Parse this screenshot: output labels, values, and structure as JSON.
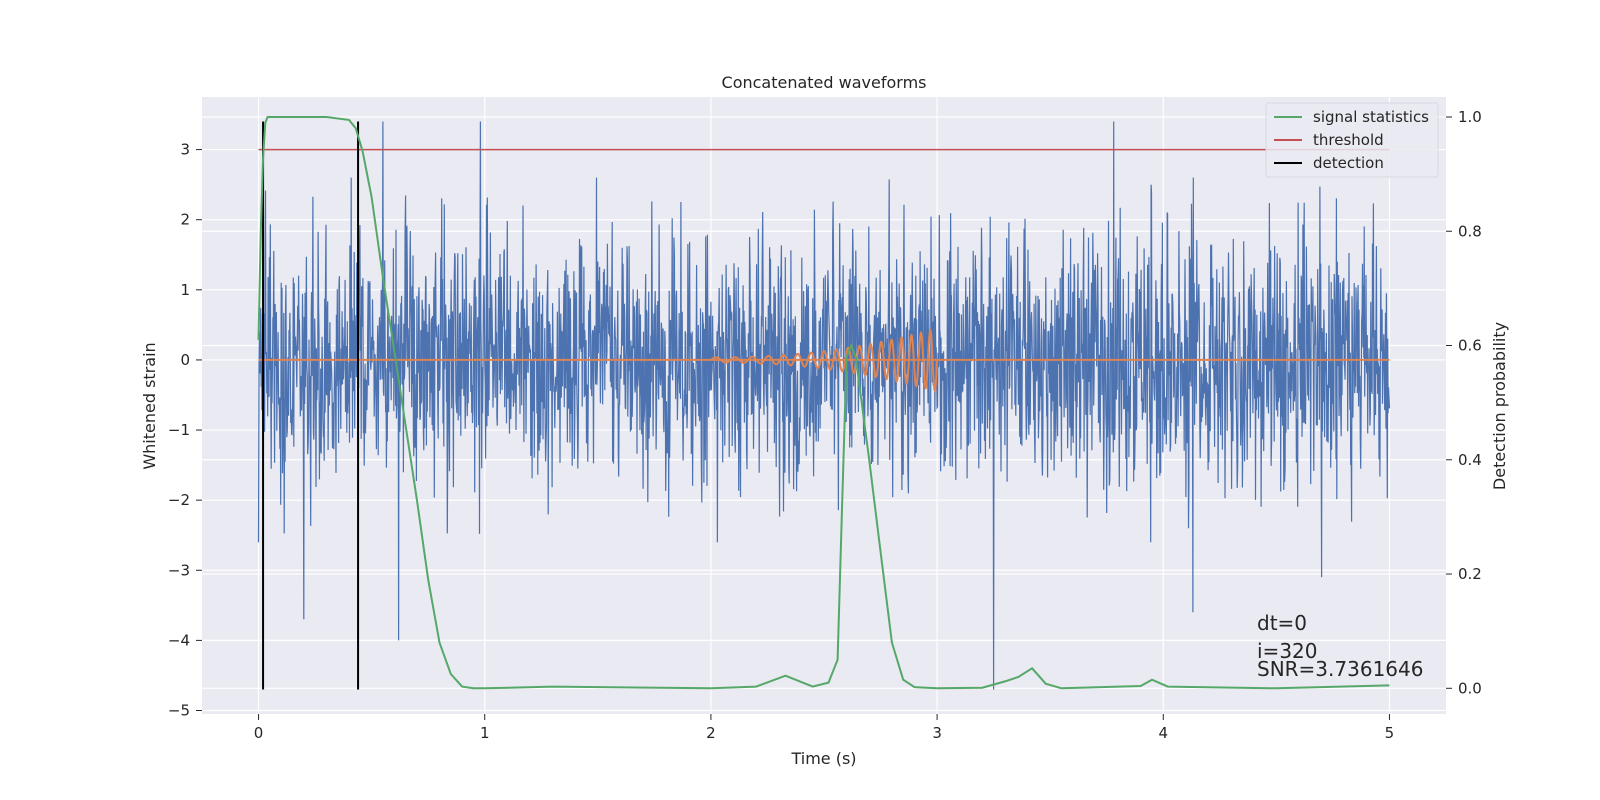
{
  "chart_data": {
    "type": "line",
    "title": "Concatenated waveforms",
    "xlabel": "Time (s)",
    "ylabel": "Whitened strain",
    "y2label": "Detection probability",
    "xlim": [
      -0.25,
      5.25
    ],
    "ylim": [
      -5.05,
      3.75
    ],
    "y2lim": [
      -0.045,
      1.035
    ],
    "xticks": [
      0,
      1,
      2,
      3,
      4,
      5
    ],
    "yticks": [
      3,
      2,
      1,
      0,
      -1,
      -2,
      -3,
      -4,
      -5
    ],
    "y2ticks": [
      1.0,
      0.8,
      0.6,
      0.4,
      0.2,
      0.0
    ],
    "xtick_labels": [
      "0",
      "1",
      "2",
      "3",
      "4",
      "5"
    ],
    "ytick_labels": [
      "3",
      "2",
      "1",
      "0",
      "−1",
      "−2",
      "−3",
      "−4",
      "−5"
    ],
    "y2tick_labels": [
      "1.0",
      "0.8",
      "0.6",
      "0.4",
      "0.2",
      "0.0"
    ],
    "grid": true,
    "legend_position": "top-right",
    "colors": {
      "background": "#eaeaf2",
      "grid": "#ffffff",
      "strain": "#4c72b0",
      "template": "#dd8452",
      "statistics": "#55a868",
      "threshold": "#c44e52",
      "detection": "#000000"
    },
    "series": [
      {
        "name": "",
        "role": "whitened strain noise",
        "axis": "left",
        "x_range": [
          0,
          5
        ],
        "typical_amplitude": 1.6,
        "notable_peaks": [
          [
            0.55,
            3.4
          ],
          [
            0.98,
            3.4
          ],
          [
            3.25,
            -4.7
          ],
          [
            3.78,
            3.4
          ],
          [
            4.7,
            -3.1
          ],
          [
            0.2,
            -3.7
          ],
          [
            0.62,
            -4.0
          ],
          [
            4.13,
            -3.6
          ]
        ]
      },
      {
        "name": "",
        "role": "injected chirp",
        "axis": "left",
        "chirp_start": 2.0,
        "chirp_end": 3.0,
        "max_amplitude": 0.45
      },
      {
        "name": "signal statistics",
        "axis": "right",
        "x": [
          0,
          0.01,
          0.02,
          0.03,
          0.04,
          0.06,
          0.1,
          0.2,
          0.3,
          0.4,
          0.43,
          0.46,
          0.5,
          0.55,
          0.6,
          0.65,
          0.7,
          0.75,
          0.8,
          0.85,
          0.9,
          0.95,
          1.0,
          1.3,
          2.0,
          2.2,
          2.33,
          2.45,
          2.52,
          2.56,
          2.58,
          2.6,
          2.62,
          2.64,
          2.66,
          2.7,
          2.75,
          2.8,
          2.85,
          2.9,
          3.0,
          3.2,
          3.3,
          3.36,
          3.42,
          3.48,
          3.55,
          3.9,
          3.95,
          4.02,
          4.5,
          5.0
        ],
        "values": [
          0.61,
          0.8,
          0.93,
          0.99,
          1.0,
          1.0,
          1.0,
          1.0,
          1.0,
          0.995,
          0.98,
          0.94,
          0.86,
          0.72,
          0.59,
          0.46,
          0.33,
          0.19,
          0.08,
          0.025,
          0.003,
          0.0,
          0.0,
          0.003,
          0.0,
          0.003,
          0.022,
          0.003,
          0.01,
          0.05,
          0.32,
          0.58,
          0.6,
          0.58,
          0.52,
          0.4,
          0.24,
          0.08,
          0.015,
          0.002,
          0.0,
          0.001,
          0.012,
          0.02,
          0.035,
          0.008,
          0.0,
          0.004,
          0.015,
          0.003,
          0.0,
          0.005
        ]
      },
      {
        "name": "threshold",
        "axis": "left",
        "value": 3.0,
        "x_range": [
          0,
          5.0
        ]
      },
      {
        "name": "detection",
        "axis": "left",
        "x": [
          0.02,
          0.44
        ],
        "y_range": [
          -4.7,
          3.4
        ]
      }
    ],
    "annotations": [
      "dt=0",
      "i=320",
      "SNR=3.7361646"
    ]
  }
}
